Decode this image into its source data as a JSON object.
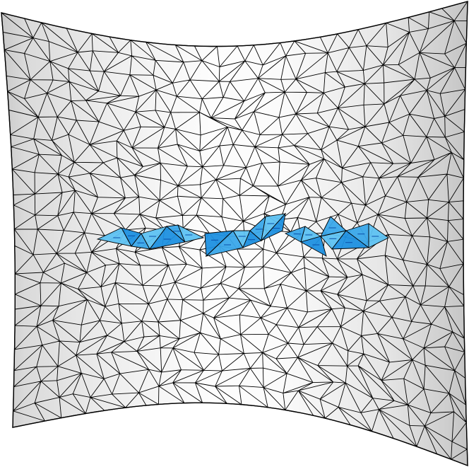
{
  "mesh": {
    "surface": "curved-sheet",
    "element_type": "triangle",
    "colors": {
      "background": "#ffffff",
      "surface_light": "#ffffff",
      "surface_mid": "#eeeeee",
      "surface_dark": "#c9c9c9",
      "edge": "#000000",
      "highlight_fill_light": "#5ec2f2",
      "highlight_fill_dark": "#1e90e0",
      "highlight_edge": "#0a4fa8"
    },
    "highlighted_band": {
      "description_visible": false,
      "element_count_approx": 20
    }
  }
}
